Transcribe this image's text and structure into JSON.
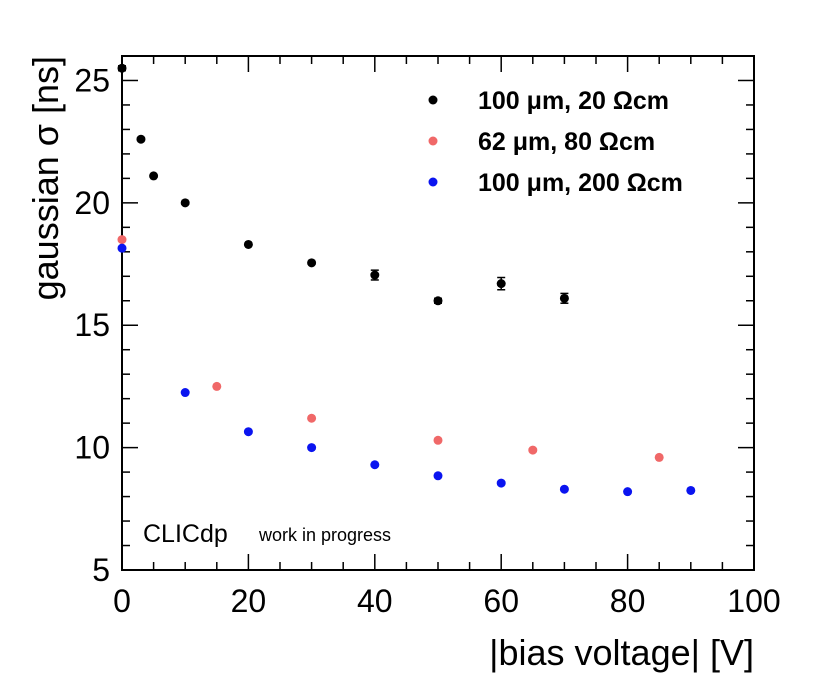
{
  "chart_data": {
    "type": "scatter",
    "title": "",
    "xlabel": "|bias voltage| [V]",
    "ylabel": "gaussian σ [ns]",
    "xlim": [
      0,
      100
    ],
    "ylim": [
      5,
      26
    ],
    "x_ticks": [
      0,
      20,
      40,
      60,
      80,
      100
    ],
    "y_ticks": [
      5,
      10,
      15,
      20,
      25
    ],
    "grid": false,
    "legend_position": "top-right",
    "annotation": {
      "main": "CLICdp",
      "sub": "work in progress"
    },
    "series": [
      {
        "name": "100 μm, 20 Ωcm",
        "color": "#000000",
        "x": [
          0,
          3,
          5,
          10,
          20,
          30,
          40,
          50,
          60,
          70
        ],
        "y": [
          25.5,
          22.6,
          21.1,
          20.0,
          18.3,
          17.55,
          17.05,
          16.0,
          16.7,
          16.1
        ],
        "yerr": [
          0.1,
          0.05,
          0.05,
          0.05,
          0.05,
          0.05,
          0.2,
          0.1,
          0.25,
          0.2
        ]
      },
      {
        "name": "62 μm, 80 Ωcm",
        "color": "#f06868",
        "x": [
          0,
          15,
          30,
          50,
          65,
          85
        ],
        "y": [
          18.5,
          12.5,
          11.2,
          10.3,
          9.9,
          9.6
        ],
        "yerr": [
          0,
          0,
          0,
          0,
          0,
          0
        ]
      },
      {
        "name": "100 μm, 200 Ωcm",
        "color": "#0a14f0",
        "x": [
          0,
          10,
          20,
          30,
          40,
          50,
          60,
          70,
          80,
          90
        ],
        "y": [
          18.15,
          12.25,
          10.65,
          10.0,
          9.3,
          8.85,
          8.55,
          8.3,
          8.2,
          8.25
        ],
        "yerr": [
          0,
          0,
          0,
          0,
          0,
          0,
          0,
          0,
          0,
          0
        ]
      }
    ]
  }
}
